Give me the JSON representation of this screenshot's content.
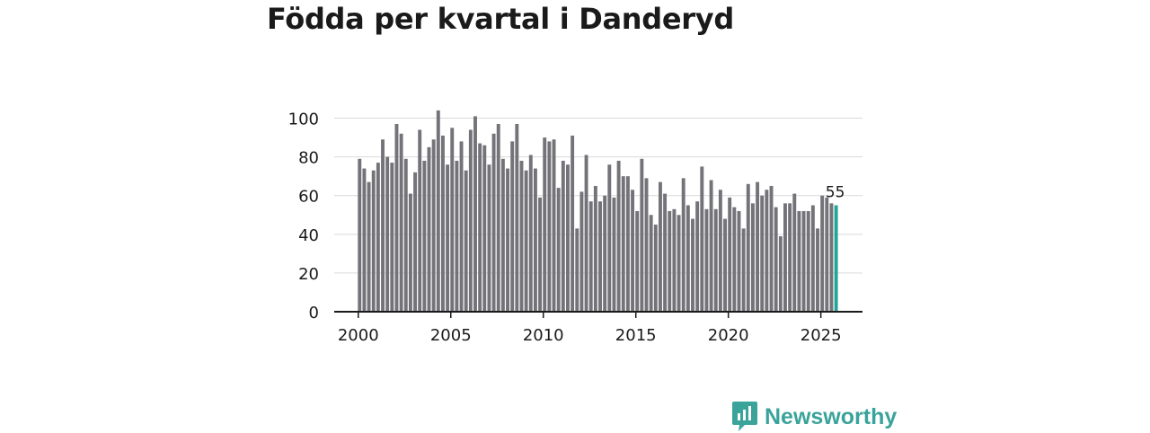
{
  "page": {
    "brand": "Newsworthy"
  },
  "chart_data": {
    "type": "bar",
    "title": "Födda per kvartal i Danderyd",
    "xlabel": "",
    "ylabel": "",
    "ylim": [
      0,
      110
    ],
    "yticks": [
      0,
      20,
      40,
      60,
      80,
      100
    ],
    "xlim": [
      1998.7,
      2027.25
    ],
    "xticks": [
      2000,
      2005,
      2010,
      2015,
      2020,
      2025
    ],
    "start_year": 2000,
    "start_quarter": 1,
    "bar_color": "#737379",
    "highlight_color": "#23a49a",
    "axis_color": "#1a1a1a",
    "grid_color": "#d9d9d9",
    "highlight_label": "55",
    "values": [
      79,
      74,
      67,
      73,
      77,
      89,
      80,
      77,
      97,
      92,
      79,
      61,
      72,
      94,
      78,
      85,
      89,
      104,
      91,
      76,
      95,
      78,
      88,
      73,
      94,
      101,
      87,
      86,
      76,
      92,
      97,
      79,
      74,
      88,
      97,
      78,
      73,
      81,
      74,
      59,
      90,
      88,
      89,
      64,
      78,
      76,
      91,
      43,
      62,
      81,
      57,
      65,
      57,
      60,
      76,
      59,
      78,
      70,
      70,
      63,
      52,
      79,
      69,
      50,
      45,
      67,
      61,
      52,
      53,
      50,
      69,
      55,
      48,
      57,
      75,
      53,
      68,
      53,
      63,
      48,
      59,
      54,
      52,
      43,
      66,
      56,
      67,
      60,
      63,
      65,
      54,
      39,
      56,
      56,
      61,
      52,
      52,
      52,
      55,
      43,
      60,
      59,
      56,
      55
    ]
  }
}
